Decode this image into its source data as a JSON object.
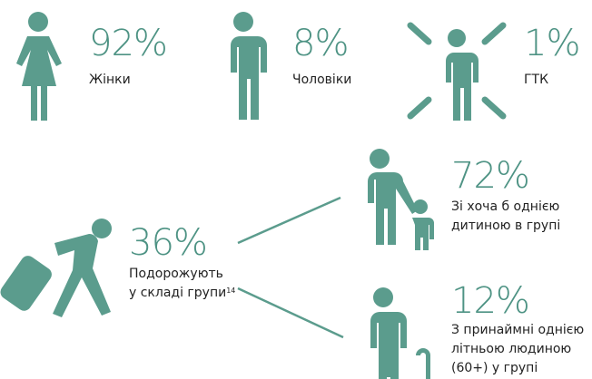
{
  "stats_top": [
    {
      "value": "92%",
      "label": "Жінки"
    },
    {
      "value": "8%",
      "label": "Чоловіки"
    },
    {
      "value": "1%",
      "label": "ГТК"
    }
  ],
  "group": {
    "value": "36%",
    "lines": [
      "Подорожують",
      "у складі групи"
    ],
    "footnote": "14"
  },
  "group_details": [
    {
      "value": "72%",
      "lines": [
        "Зі хоча б однією",
        "дитиною в групі"
      ]
    },
    {
      "value": "12%",
      "lines": [
        "З принаймні однією",
        "літньою людиною",
        "(60+) у групі"
      ]
    }
  ]
}
